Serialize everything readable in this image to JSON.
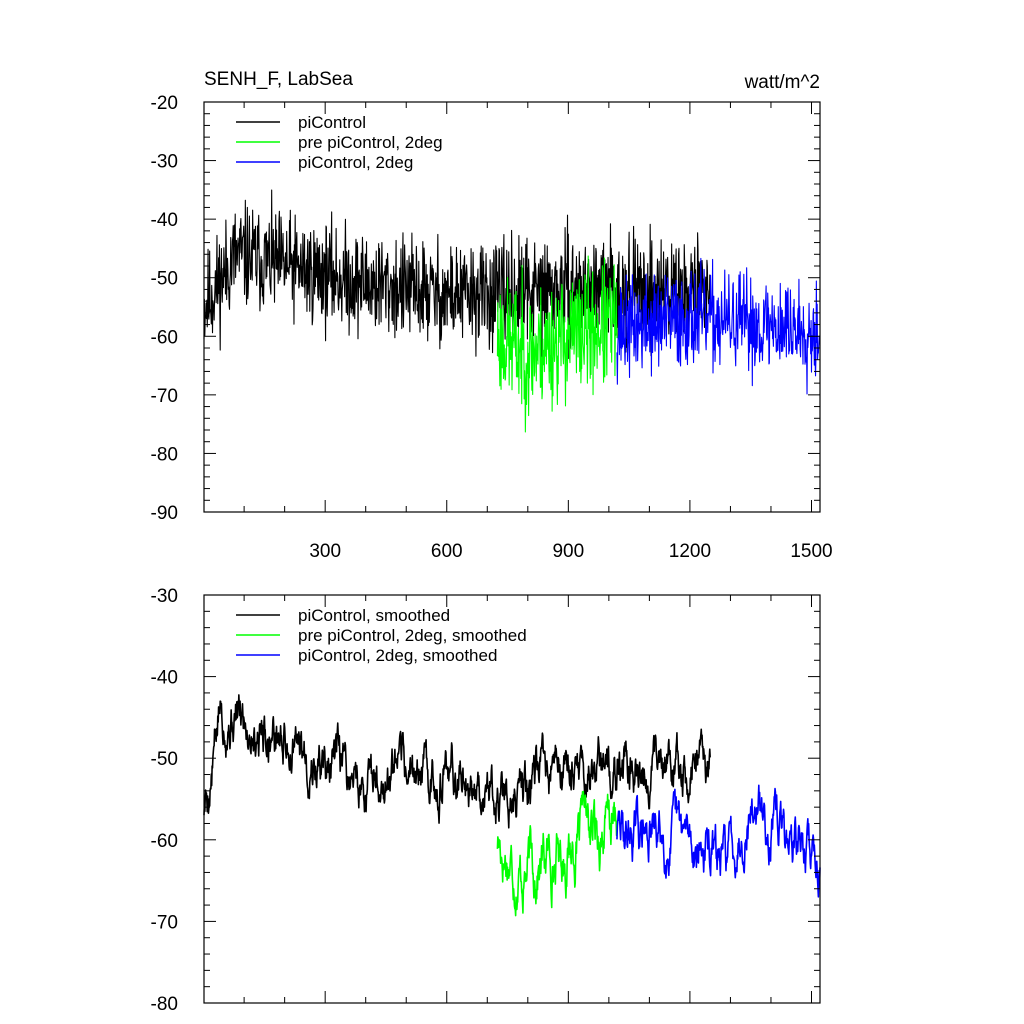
{
  "title_left": "SENH_F, LabSea",
  "title_right": "watt/m^2",
  "colors": {
    "piControl": "#000000",
    "pre": "#00ff00",
    "twodeg": "#0000ff"
  },
  "chart_data": [
    {
      "type": "line",
      "name": "raw",
      "xlim": [
        1,
        1521
      ],
      "ylim": [
        -90,
        -20
      ],
      "xticks": [
        300,
        600,
        900,
        1200,
        1500
      ],
      "xtick_labels": [
        "300",
        "600",
        "900",
        "1200",
        "1500"
      ],
      "yticks": [
        -90,
        -80,
        -70,
        -60,
        -50,
        -40,
        -30,
        -20
      ],
      "ytick_labels": [
        "-90",
        "-80",
        "-70",
        "-60",
        "-50",
        "-40",
        "-30",
        "-20"
      ],
      "legend": [
        "piControl",
        "pre piControl, 2deg",
        "piControl, 2deg"
      ],
      "series": [
        {
          "name": "piControl",
          "color_key": "piControl",
          "x_start": 1,
          "x_end": 1250,
          "anchors": [
            [
              1,
              -55
            ],
            [
              80,
              -46
            ],
            [
              200,
              -48
            ],
            [
              400,
              -51
            ],
            [
              600,
              -53
            ],
            [
              730,
              -53
            ],
            [
              900,
              -52
            ],
            [
              1100,
              -52
            ],
            [
              1250,
              -52
            ]
          ],
          "spread": 7.5,
          "ymin": -74,
          "ymax": -27,
          "seed": 11
        },
        {
          "name": "pre piControl, 2deg",
          "color_key": "pre",
          "x_start": 725,
          "x_end": 1020,
          "anchors": [
            [
              725,
              -60
            ],
            [
              800,
              -63
            ],
            [
              900,
              -60
            ],
            [
              1020,
              -58
            ]
          ],
          "spread": 9,
          "ymin": -85,
          "ymax": -43,
          "seed": 23
        },
        {
          "name": "piControl, 2deg",
          "color_key": "twodeg",
          "x_start": 1020,
          "x_end": 1521,
          "anchors": [
            [
              1020,
              -59
            ],
            [
              1200,
              -57
            ],
            [
              1350,
              -58
            ],
            [
              1521,
              -59
            ]
          ],
          "spread": 7,
          "ymin": -80,
          "ymax": -31,
          "seed": 37
        }
      ]
    },
    {
      "type": "line",
      "name": "smoothed",
      "xlim": [
        1,
        1521
      ],
      "ylim": [
        -80,
        -30
      ],
      "xticks": [
        300,
        600,
        900,
        1200,
        1500
      ],
      "xtick_labels": [],
      "yticks": [
        -80,
        -70,
        -60,
        -50,
        -40,
        -30
      ],
      "ytick_labels": [
        "-80",
        "-70",
        "-60",
        "-50",
        "-40",
        "-30"
      ],
      "legend": [
        "piControl, smoothed",
        "pre piControl, 2deg, smoothed",
        "piControl, 2deg, smoothed"
      ],
      "series": [
        {
          "name": "piControl, smoothed",
          "color_key": "piControl",
          "x_start": 1,
          "x_end": 1250,
          "anchors": [
            [
              1,
              -56
            ],
            [
              20,
              -52
            ],
            [
              40,
              -44
            ],
            [
              150,
              -46
            ],
            [
              250,
              -50
            ],
            [
              400,
              -53
            ],
            [
              600,
              -52
            ],
            [
              750,
              -54
            ],
            [
              900,
              -52
            ],
            [
              1100,
              -51
            ],
            [
              1250,
              -52
            ]
          ],
          "spread": 2.6,
          "ymin": -59,
          "ymax": -39,
          "seed": 5
        },
        {
          "name": "pre piControl, 2deg, smoothed",
          "color_key": "pre",
          "x_start": 725,
          "x_end": 1020,
          "anchors": [
            [
              725,
              -60
            ],
            [
              780,
              -64
            ],
            [
              900,
              -61
            ],
            [
              1020,
              -58
            ]
          ],
          "spread": 3,
          "ymin": -70,
          "ymax": -54,
          "seed": 17
        },
        {
          "name": "piControl, 2deg, smoothed",
          "color_key": "twodeg",
          "x_start": 1020,
          "x_end": 1521,
          "anchors": [
            [
              1020,
              -59
            ],
            [
              1200,
              -60
            ],
            [
              1280,
              -63
            ],
            [
              1350,
              -56
            ],
            [
              1450,
              -60
            ],
            [
              1521,
              -62
            ]
          ],
          "spread": 2.6,
          "ymin": -68,
          "ymax": -48,
          "seed": 29
        }
      ]
    }
  ]
}
